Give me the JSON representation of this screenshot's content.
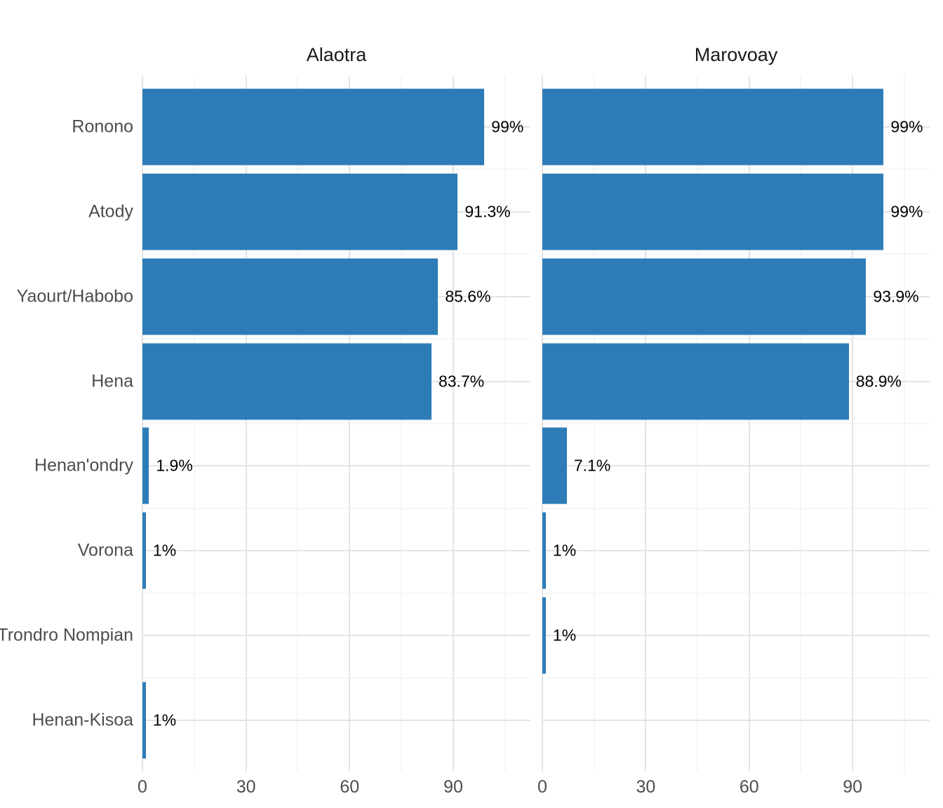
{
  "chart_data": {
    "type": "bar",
    "orientation": "horizontal",
    "title": "",
    "categories": [
      "Ronono",
      "Atody",
      "Yaourt/Habobo",
      "Hena",
      "Henan'ondry",
      "Vorona",
      "Trondro Nompian",
      "Henan-Kisoa"
    ],
    "facets": [
      {
        "title": "Alaotra",
        "values": [
          99,
          91.3,
          85.6,
          83.7,
          1.9,
          1,
          null,
          1
        ],
        "labels": [
          "99%",
          "91.3%",
          "85.6%",
          "83.7%",
          "1.9%",
          "1%",
          null,
          "1%"
        ]
      },
      {
        "title": "Marovoay",
        "values": [
          99,
          99,
          93.9,
          88.9,
          7.1,
          1,
          1,
          null
        ],
        "labels": [
          "99%",
          "99%",
          "93.9%",
          "88.9%",
          "7.1%",
          "1%",
          "1%",
          null
        ]
      }
    ],
    "x_axis": {
      "tick_labels": [
        "0",
        "30",
        "60",
        "90"
      ],
      "major_ticks": [
        0,
        30,
        60,
        90
      ],
      "minor_ticks": [
        15,
        45,
        75,
        105
      ],
      "max": 112.35
    },
    "ylim_rows": {
      "units": 8.2,
      "first_center": 0.6,
      "bar_fraction": 0.9
    },
    "legend": "none",
    "grid": "on",
    "style": {
      "bar_color": "#2E7CB7",
      "axis_text_color": "#4D4D4D",
      "value_text_color": "#000000",
      "strip_text_color": "#1A1A1A",
      "grid_major_color": "#E4E4E4",
      "grid_minor_color": "#EDEDED",
      "background_color": "#FFFFFF"
    }
  }
}
